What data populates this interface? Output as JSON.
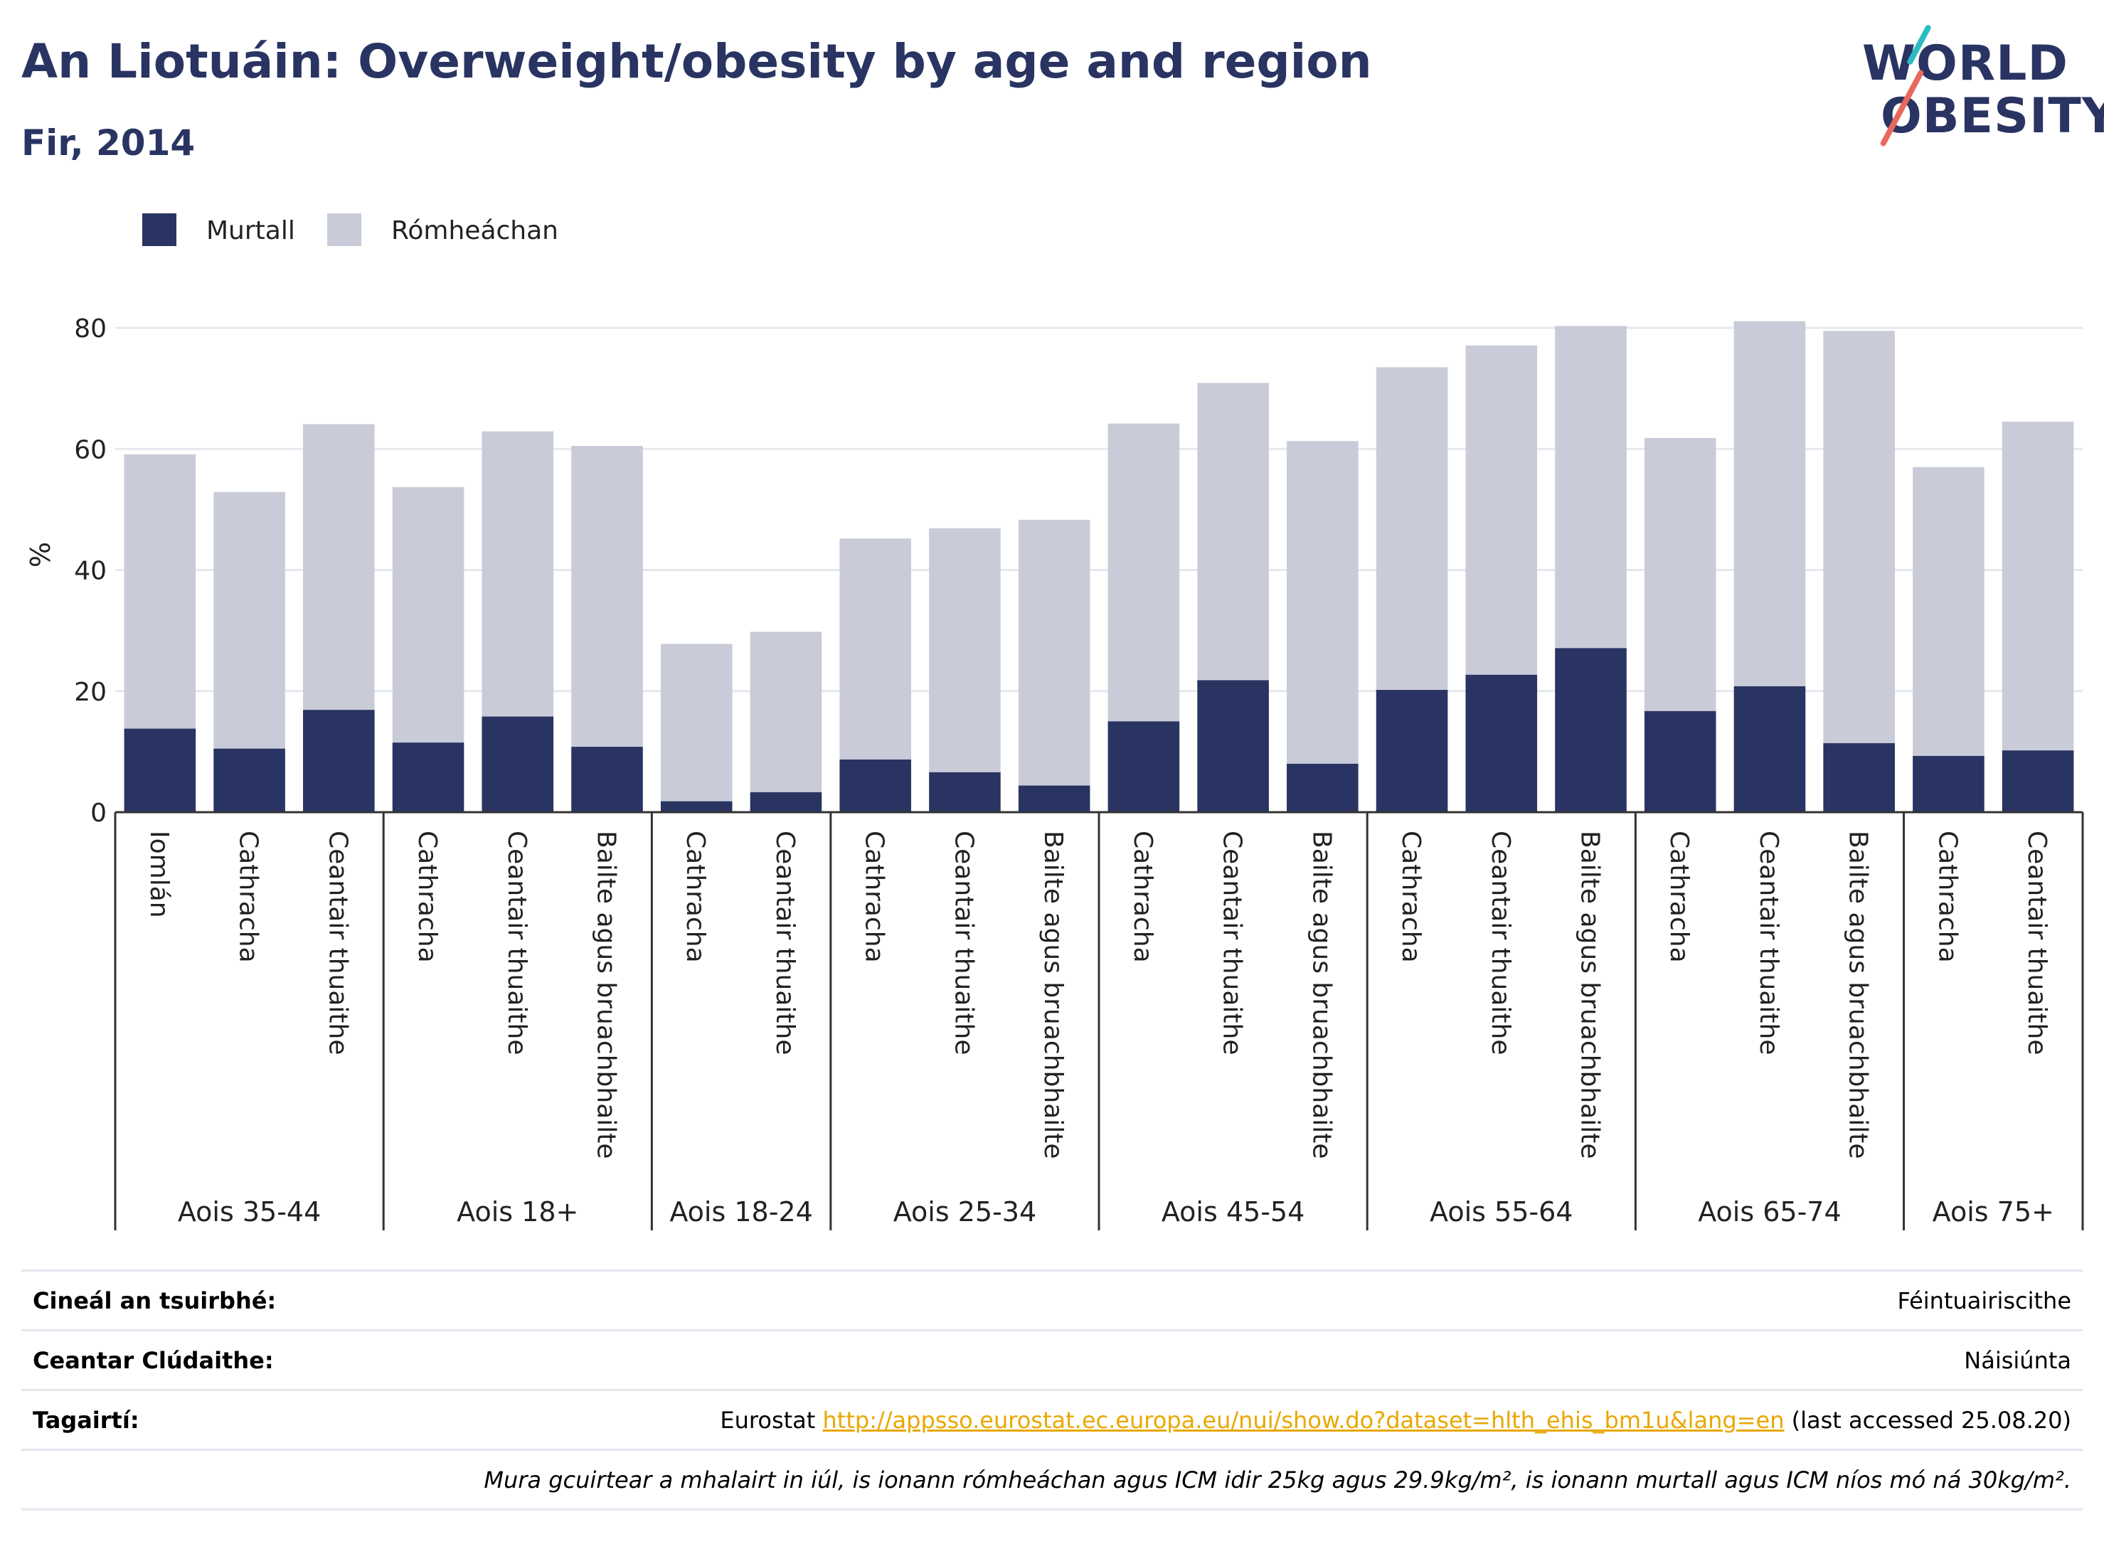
{
  "title": "An Liotuáin: Overweight/obesity by age and region",
  "subtitle": "Fir, 2014",
  "logo": {
    "line1": "WORLD",
    "line2": "OBESITY"
  },
  "colors": {
    "obese": "#293462",
    "overweight": "#c9ccd8",
    "title": "#293462",
    "accent_teal": "#2bbcc0",
    "accent_red": "#e8685d",
    "link": "#e8a800"
  },
  "chart_data": {
    "type": "bar",
    "stacked": true,
    "ylabel": "%",
    "ylim": [
      0,
      80
    ],
    "yticks": [
      0,
      20,
      40,
      60,
      80
    ],
    "grid": true,
    "legend_position": "top-left",
    "groups": [
      {
        "label": "Aois 35-44",
        "categories": [
          "Iomlán",
          "Cathracha",
          "Ceantair thuaithe"
        ]
      },
      {
        "label": "Aois 18+",
        "categories": [
          "Cathracha",
          "Ceantair thuaithe",
          "Bailte agus bruachbhailte"
        ]
      },
      {
        "label": "Aois 18-24",
        "categories": [
          "Cathracha",
          "Ceantair thuaithe"
        ]
      },
      {
        "label": "Aois 25-34",
        "categories": [
          "Cathracha",
          "Ceantair thuaithe",
          "Bailte agus bruachbhailte"
        ]
      },
      {
        "label": "Aois 45-54",
        "categories": [
          "Cathracha",
          "Ceantair thuaithe",
          "Bailte agus bruachbhailte"
        ]
      },
      {
        "label": "Aois 55-64",
        "categories": [
          "Cathracha",
          "Ceantair thuaithe",
          "Bailte agus bruachbhailte"
        ]
      },
      {
        "label": "Aois 65-74",
        "categories": [
          "Cathracha",
          "Ceantair thuaithe",
          "Bailte agus bruachbhailte"
        ]
      },
      {
        "label": "Aois 75+",
        "categories": [
          "Cathracha",
          "Ceantair thuaithe"
        ]
      }
    ],
    "series": [
      {
        "name": "Murtall",
        "values": [
          13.8,
          10.5,
          16.9,
          11.5,
          15.8,
          10.8,
          1.8,
          3.3,
          8.7,
          6.6,
          4.4,
          15.0,
          21.8,
          8.0,
          20.2,
          22.7,
          27.1,
          16.7,
          20.8,
          11.4,
          9.3,
          10.2
        ]
      },
      {
        "name": "Rómheáchan",
        "values": [
          45.3,
          42.4,
          47.2,
          42.2,
          47.1,
          49.7,
          26.0,
          26.5,
          36.5,
          40.3,
          43.9,
          49.2,
          49.1,
          53.3,
          53.3,
          54.4,
          53.2,
          45.1,
          60.3,
          68.1,
          47.7,
          54.3
        ]
      }
    ]
  },
  "info": {
    "survey_label": "Cineál an tsuirbhé:",
    "survey_value": "Féintuairiscithe",
    "area_label": "Ceantar Clúdaithe:",
    "area_value": "Náisiúnta",
    "refs_label": "Tagairtí:",
    "refs_prefix": "Eurostat ",
    "refs_link": "http://appsso.eurostat.ec.europa.eu/nui/show.do?dataset=hlth_ehis_bm1u&lang=en",
    "refs_suffix": " (last accessed 25.08.20)",
    "note": "Mura gcuirtear a mhalairt in iúl, is ionann rómheáchan agus ICM idir 25kg agus 29.9kg/m², is ionann murtall agus ICM níos mó ná 30kg/m²."
  }
}
